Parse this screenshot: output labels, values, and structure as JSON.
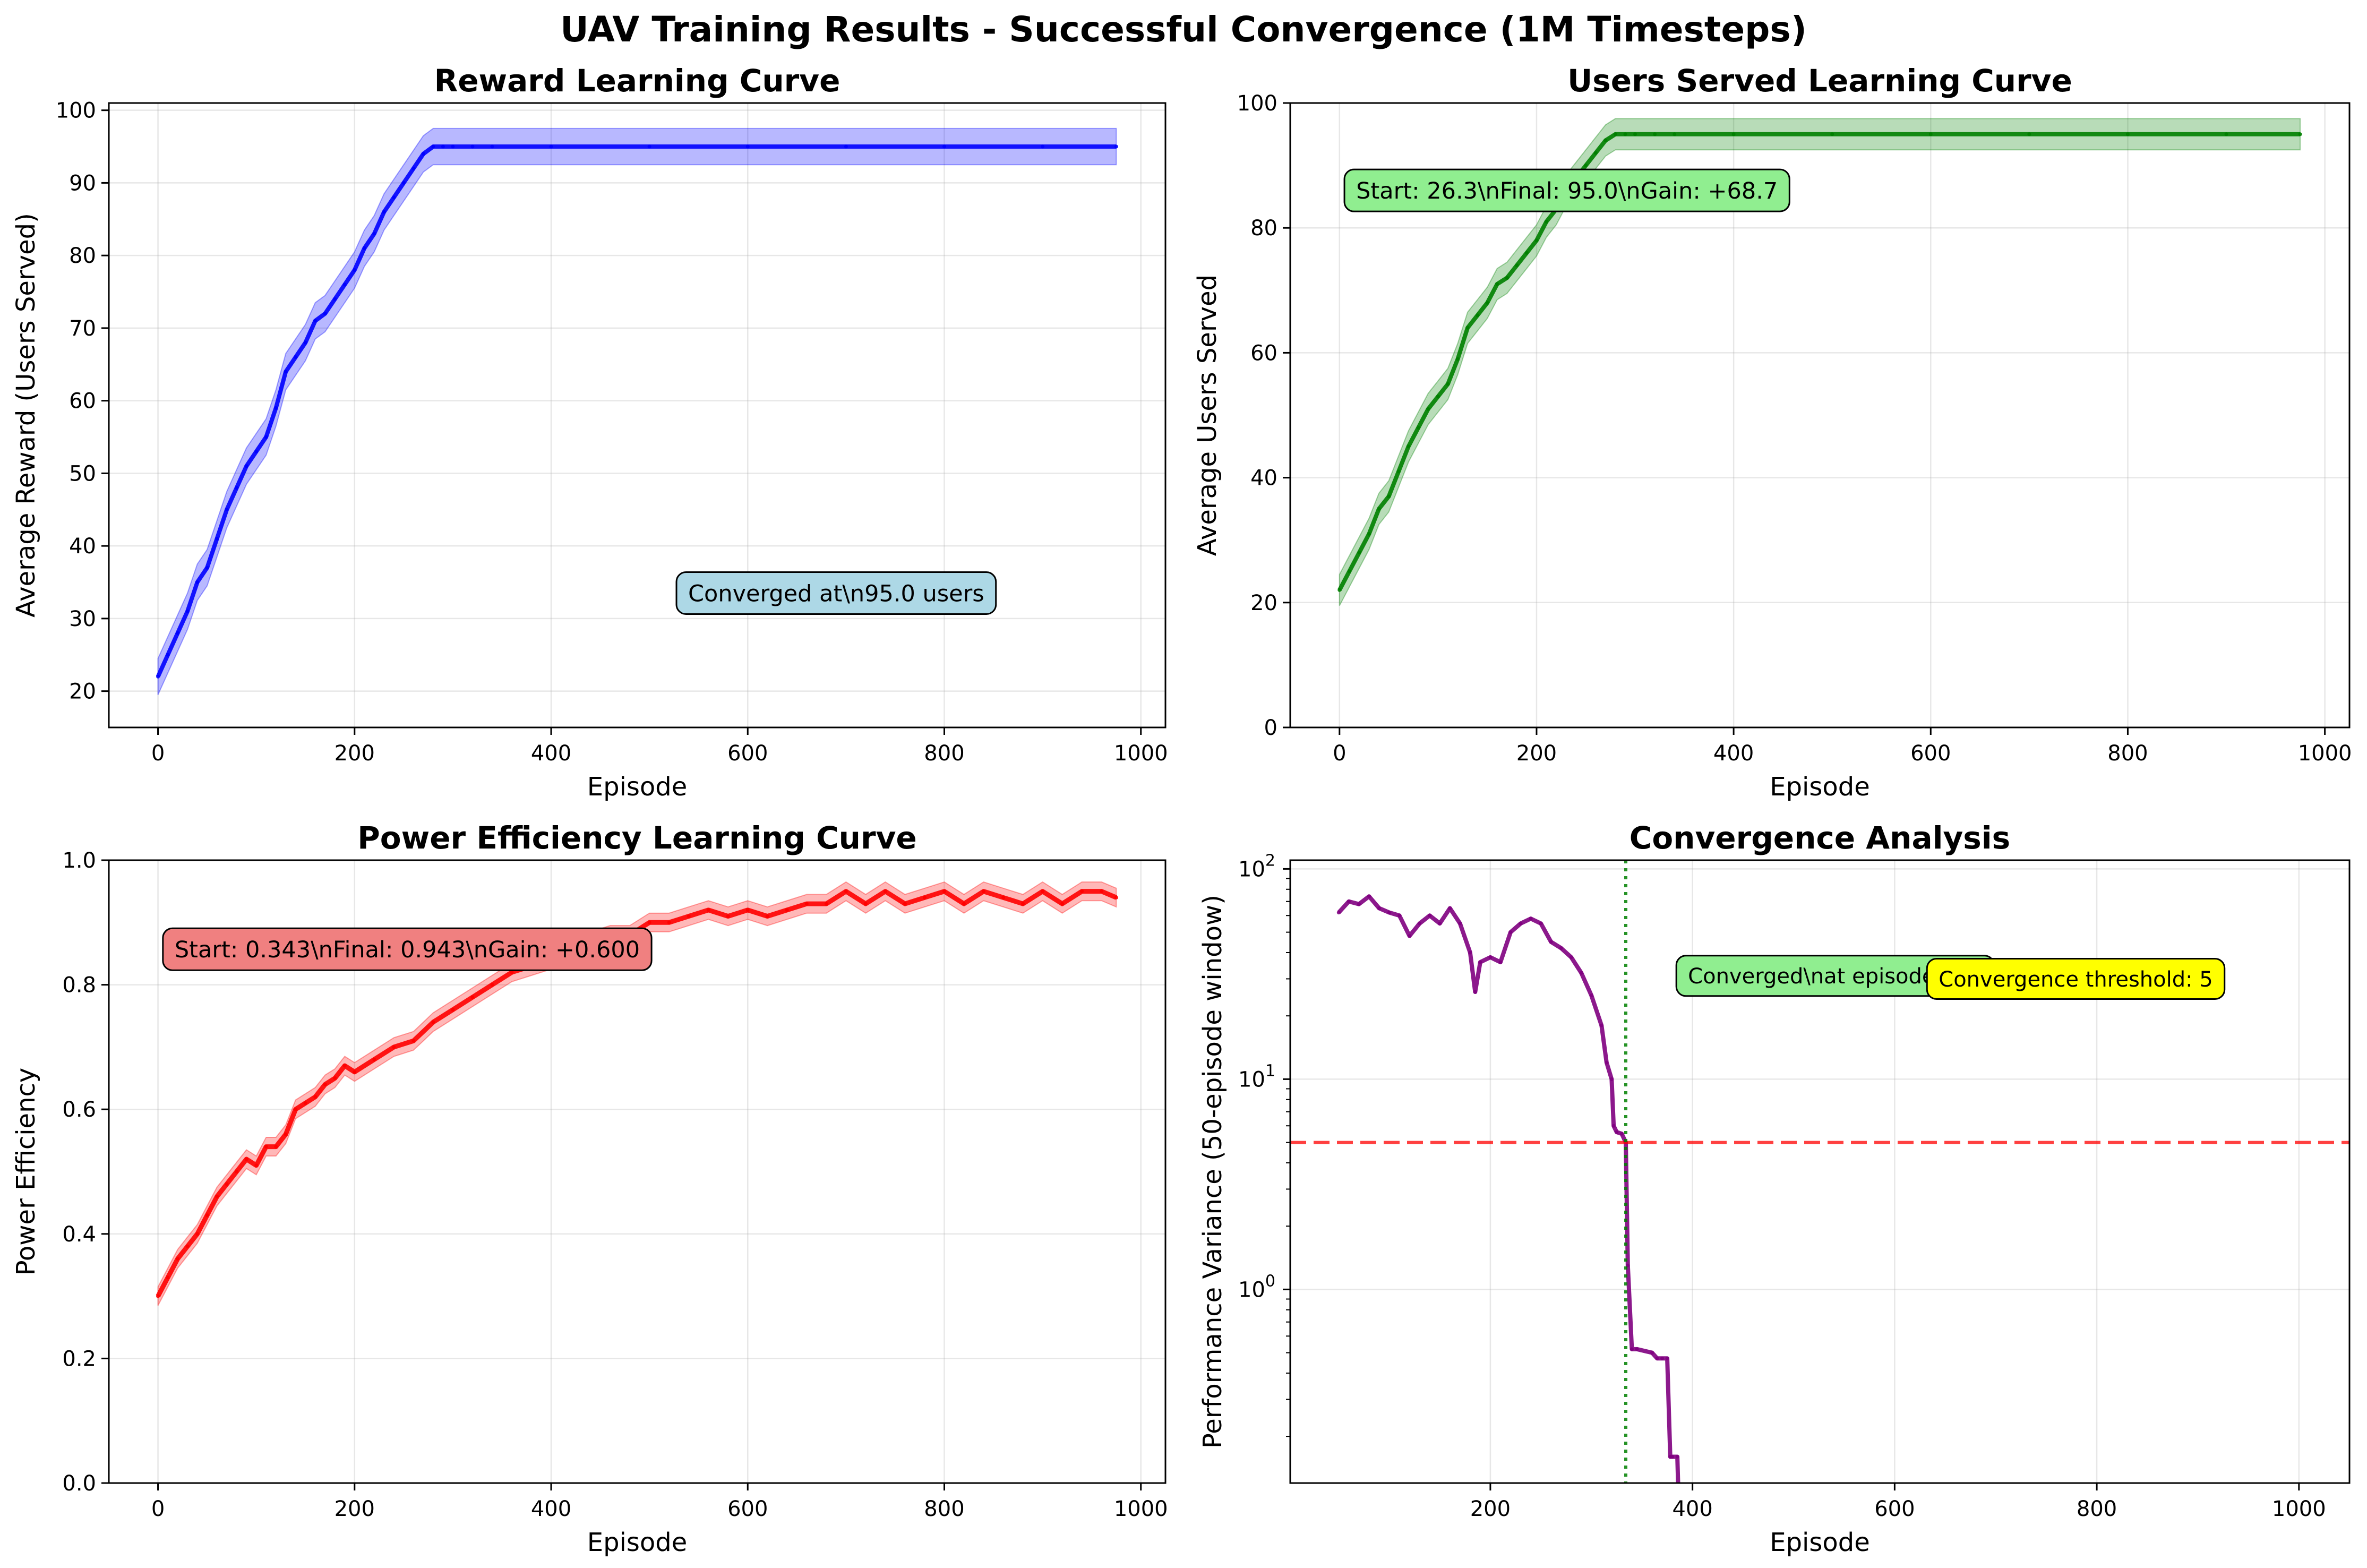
{
  "figure_title": "UAV Training Results - Successful Convergence (1M Timesteps)",
  "colors": {
    "reward": "#0000ff",
    "users": "#008000",
    "power": "#ff0000",
    "variance": "#800080",
    "threshold": "#ff0000",
    "marker": "#008000"
  },
  "chart_data": [
    {
      "id": "reward",
      "type": "line",
      "title": "Reward Learning Curve",
      "xlabel": "Episode",
      "ylabel": "Average Reward (Users Served)",
      "xlim": [
        -50,
        1025
      ],
      "ylim": [
        15,
        101
      ],
      "xticks": [
        0,
        200,
        400,
        600,
        800,
        1000
      ],
      "yticks": [
        20,
        30,
        40,
        50,
        60,
        70,
        80,
        90,
        100
      ],
      "series": [
        {
          "color": "#0000ff",
          "band_halfwidth": 2.5,
          "x": [
            0,
            10,
            20,
            30,
            40,
            50,
            60,
            70,
            80,
            90,
            100,
            110,
            120,
            130,
            140,
            150,
            160,
            170,
            180,
            190,
            200,
            210,
            220,
            230,
            240,
            250,
            260,
            270,
            280,
            290,
            300,
            320,
            340,
            400,
            500,
            600,
            700,
            800,
            900,
            975
          ],
          "y": [
            22,
            25,
            28,
            31,
            35,
            37,
            41,
            45,
            48,
            51,
            53,
            55,
            59,
            64,
            66,
            68,
            71,
            72,
            74,
            76,
            78,
            81,
            83,
            86,
            88,
            90,
            92,
            94,
            95,
            95,
            95,
            95,
            95,
            95,
            95,
            95,
            95,
            95,
            95,
            95
          ]
        }
      ],
      "annotations": [
        {
          "text": "Converged at\\n95.0 users",
          "x": 690,
          "y": 33.5,
          "bg": "#add8e6"
        }
      ]
    },
    {
      "id": "users",
      "type": "line",
      "title": "Users Served Learning Curve",
      "xlabel": "Episode",
      "ylabel": "Average Users Served",
      "xlim": [
        -50,
        1025
      ],
      "ylim": [
        0,
        100
      ],
      "xticks": [
        0,
        200,
        400,
        600,
        800,
        1000
      ],
      "yticks": [
        0,
        20,
        40,
        60,
        80,
        100
      ],
      "series": [
        {
          "color": "#008000",
          "band_halfwidth": 2.5,
          "x": [
            0,
            10,
            20,
            30,
            40,
            50,
            60,
            70,
            80,
            90,
            100,
            110,
            120,
            130,
            140,
            150,
            160,
            170,
            180,
            190,
            200,
            210,
            220,
            230,
            240,
            250,
            260,
            270,
            280,
            290,
            300,
            320,
            340,
            400,
            500,
            600,
            700,
            800,
            900,
            975
          ],
          "y": [
            22,
            25,
            28,
            31,
            35,
            37,
            41,
            45,
            48,
            51,
            53,
            55,
            59,
            64,
            66,
            68,
            71,
            72,
            74,
            76,
            78,
            81,
            83,
            86,
            88,
            90,
            92,
            94,
            95,
            95,
            95,
            95,
            95,
            95,
            95,
            95,
            95,
            95,
            95,
            95
          ]
        }
      ],
      "annotations": [
        {
          "text": "Start: 26.3\\nFinal: 95.0\\nGain: +68.7",
          "x": 5,
          "y": 86,
          "bg": "#90ee90",
          "anchor": "left"
        }
      ]
    },
    {
      "id": "power",
      "type": "line",
      "title": "Power Efficiency Learning Curve",
      "xlabel": "Episode",
      "ylabel": "Power Efficiency",
      "xlim": [
        -50,
        1025
      ],
      "ylim": [
        0,
        1.0
      ],
      "xticks": [
        0,
        200,
        400,
        600,
        800,
        1000
      ],
      "yticks": [
        0.0,
        0.2,
        0.4,
        0.6,
        0.8,
        1.0
      ],
      "series": [
        {
          "color": "#ff0000",
          "band_halfwidth": 0.015,
          "x": [
            0,
            10,
            20,
            30,
            40,
            50,
            60,
            70,
            80,
            90,
            100,
            110,
            120,
            130,
            140,
            150,
            160,
            170,
            180,
            190,
            200,
            220,
            240,
            260,
            280,
            300,
            320,
            340,
            360,
            380,
            400,
            420,
            440,
            460,
            480,
            500,
            520,
            540,
            560,
            580,
            600,
            620,
            640,
            660,
            680,
            700,
            720,
            740,
            760,
            780,
            800,
            820,
            840,
            860,
            880,
            900,
            920,
            940,
            960,
            975
          ],
          "y": [
            0.3,
            0.33,
            0.36,
            0.38,
            0.4,
            0.43,
            0.46,
            0.48,
            0.5,
            0.52,
            0.51,
            0.54,
            0.54,
            0.56,
            0.6,
            0.61,
            0.62,
            0.64,
            0.65,
            0.67,
            0.66,
            0.68,
            0.7,
            0.71,
            0.74,
            0.76,
            0.78,
            0.8,
            0.82,
            0.83,
            0.84,
            0.86,
            0.87,
            0.88,
            0.88,
            0.9,
            0.9,
            0.91,
            0.92,
            0.91,
            0.92,
            0.91,
            0.92,
            0.93,
            0.93,
            0.95,
            0.93,
            0.95,
            0.93,
            0.94,
            0.95,
            0.93,
            0.95,
            0.94,
            0.93,
            0.95,
            0.93,
            0.95,
            0.95,
            0.94
          ]
        }
      ],
      "annotations": [
        {
          "text": "Start: 0.343\\nFinal: 0.943\\nGain: +0.600",
          "x": 5,
          "y": 0.857,
          "bg": "#f08080",
          "anchor": "left"
        }
      ]
    },
    {
      "id": "variance",
      "type": "line",
      "scale": "log",
      "title": "Convergence Analysis",
      "xlabel": "Episode",
      "ylabel": "Performance Variance (50-episode window)",
      "xlim": [
        2,
        1050
      ],
      "ylim": [
        0.12,
        110
      ],
      "xticks": [
        200,
        400,
        600,
        800,
        1000
      ],
      "yticks": [
        1,
        10,
        100
      ],
      "ytick_labels": [
        "10^0",
        "10^1",
        "10^2"
      ],
      "series": [
        {
          "color": "#800080",
          "x": [
            50,
            60,
            70,
            80,
            90,
            100,
            110,
            120,
            130,
            140,
            150,
            160,
            170,
            180,
            185,
            190,
            200,
            210,
            220,
            230,
            240,
            250,
            260,
            270,
            280,
            290,
            300,
            310,
            315,
            320,
            322,
            325,
            330,
            334,
            336,
            340,
            345,
            360,
            365,
            370,
            375,
            378,
            380,
            385,
            388
          ],
          "y": [
            62,
            70,
            68,
            74,
            65,
            62,
            60,
            48,
            55,
            60,
            55,
            65,
            55,
            40,
            26,
            36,
            38,
            36,
            50,
            55,
            58,
            55,
            45,
            42,
            38,
            32,
            25,
            18,
            12,
            10,
            6,
            5.6,
            5.5,
            5.0,
            1.3,
            0.52,
            0.52,
            0.5,
            0.47,
            0.47,
            0.47,
            0.16,
            0.16,
            0.16,
            0.05
          ]
        }
      ],
      "threshold": {
        "label": "Convergence threshold: 5",
        "y": 5,
        "color": "#ff0000",
        "bg": "#ffff00"
      },
      "converged_marker": {
        "label": "Converged\\nat episode 334",
        "x": 334,
        "color": "#008000",
        "bg": "#90ee90"
      }
    }
  ]
}
